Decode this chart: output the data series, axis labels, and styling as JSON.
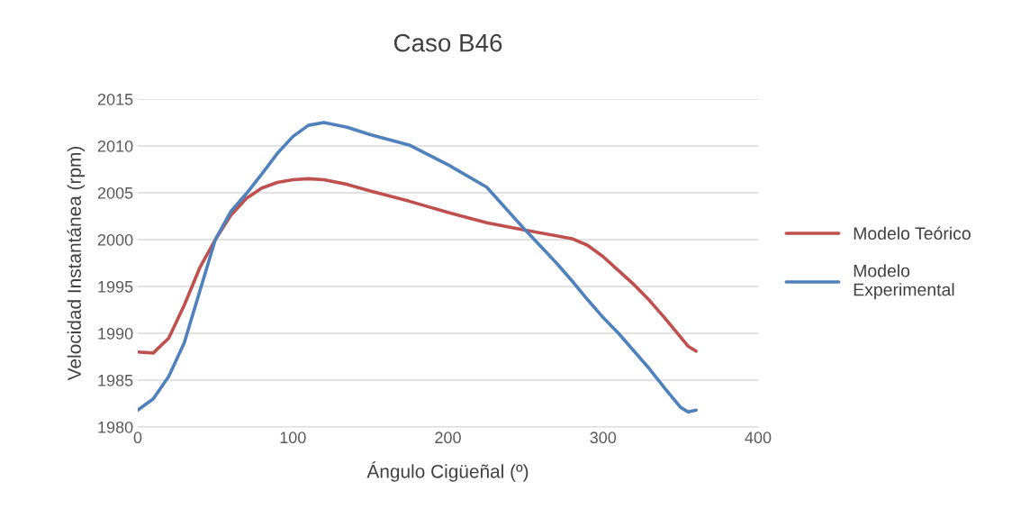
{
  "chart_data": {
    "type": "line",
    "title": "Caso B46",
    "xlabel": "Ángulo Cigüeñal (º)",
    "ylabel": "Velocidad Instantánea (rpm)",
    "x": [
      0,
      10,
      20,
      30,
      40,
      50,
      60,
      70,
      80,
      90,
      100,
      110,
      120,
      135,
      150,
      175,
      200,
      225,
      250,
      270,
      280,
      290,
      300,
      310,
      320,
      330,
      340,
      350,
      355,
      360
    ],
    "series": [
      {
        "name": "Modelo Teórico",
        "color": "#c0504d",
        "values": [
          1988,
          1987.9,
          1989.5,
          1993,
          1997,
          2000,
          2002.6,
          2004.4,
          2005.5,
          2006.1,
          2006.4,
          2006.5,
          2006.4,
          2005.9,
          2005.2,
          2004.1,
          2002.9,
          2001.8,
          2001,
          2000.4,
          2000.1,
          1999.4,
          1998.2,
          1996.7,
          1995.2,
          1993.5,
          1991.6,
          1989.6,
          1988.6,
          1988.1
        ]
      },
      {
        "name": "Modelo Experimental",
        "color": "#4f81bd",
        "values": [
          1981.8,
          1983,
          1985.4,
          1989,
          1994.5,
          2000,
          2003,
          2004.9,
          2007,
          2009.2,
          2011,
          2012.2,
          2012.5,
          2012,
          2011.2,
          2010.1,
          2008,
          2005.6,
          2001,
          1997.5,
          1995.6,
          1993.6,
          1991.7,
          1990,
          1988.1,
          1986.2,
          1984.1,
          1982.1,
          1981.6,
          1981.8
        ]
      }
    ],
    "xlim": [
      0,
      400
    ],
    "xticks": [
      0,
      100,
      200,
      300,
      400
    ],
    "ylim": [
      1980,
      2015
    ],
    "yticks": [
      1980,
      1985,
      1990,
      1995,
      2000,
      2005,
      2010,
      2015
    ],
    "grid": "y",
    "legend": "right",
    "marker": "none",
    "line_style": "solid"
  }
}
